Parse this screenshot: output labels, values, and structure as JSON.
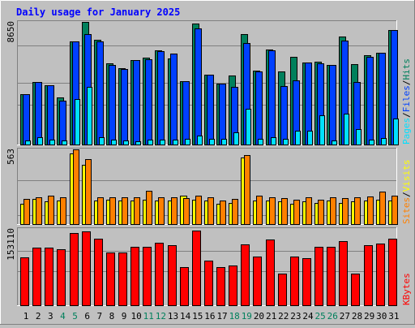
{
  "title": "Daily usage for January 2025",
  "chart_data": [
    {
      "type": "bar",
      "panel": "hits-files-pages",
      "title": "Daily usage for January 2025",
      "max_label": "8650",
      "ylim": [
        0,
        8650
      ],
      "grid": true,
      "axis_labels": [
        {
          "text": "Pages",
          "color": "#00e0ff"
        },
        {
          "text": "/",
          "color": "#000000"
        },
        {
          "text": "Files",
          "color": "#0040ff"
        },
        {
          "text": "/",
          "color": "#000000"
        },
        {
          "text": "Hits",
          "color": "#00805c"
        }
      ],
      "categories": [
        "1",
        "2",
        "3",
        "4",
        "5",
        "6",
        "7",
        "8",
        "9",
        "10",
        "11",
        "12",
        "13",
        "14",
        "15",
        "16",
        "17",
        "18",
        "19",
        "20",
        "21",
        "22",
        "23",
        "24",
        "25",
        "26",
        "27",
        "28",
        "29",
        "30",
        "31"
      ],
      "series": [
        {
          "name": "Hits",
          "color": "#00805c",
          "values": [
            3550,
            4400,
            4200,
            3300,
            7300,
            8650,
            7400,
            5750,
            5400,
            5950,
            6150,
            6650,
            6100,
            4450,
            8550,
            4900,
            4300,
            4850,
            7800,
            5200,
            6700,
            5150,
            6200,
            5800,
            5850,
            5600,
            7600,
            5650,
            6300,
            6500,
            8100
          ]
        },
        {
          "name": "Files",
          "color": "#0040ff",
          "values": [
            3550,
            4400,
            4200,
            3100,
            7300,
            7800,
            7250,
            5600,
            5350,
            5950,
            6000,
            6600,
            6400,
            4450,
            8200,
            4950,
            4300,
            4050,
            7150,
            5150,
            6650,
            4150,
            4550,
            5800,
            5750,
            5600,
            7350,
            4400,
            6200,
            6450,
            8100
          ]
        },
        {
          "name": "Pages",
          "color": "#00e0ff",
          "values": [
            300,
            500,
            350,
            300,
            3200,
            4050,
            500,
            350,
            300,
            250,
            350,
            350,
            350,
            400,
            650,
            400,
            400,
            850,
            2500,
            400,
            500,
            400,
            950,
            950,
            2050,
            300,
            2150,
            1100,
            350,
            450,
            1850
          ]
        }
      ]
    },
    {
      "type": "bar",
      "panel": "visits-sites",
      "max_label": "563",
      "ylim": [
        0,
        563
      ],
      "grid": true,
      "axis_labels": [
        {
          "text": "Sites",
          "color": "#ff8000"
        },
        {
          "text": "/",
          "color": "#000000"
        },
        {
          "text": "Visits",
          "color": "#ffff00"
        }
      ],
      "categories": [
        "1",
        "2",
        "3",
        "4",
        "5",
        "6",
        "7",
        "8",
        "9",
        "10",
        "11",
        "12",
        "13",
        "14",
        "15",
        "16",
        "17",
        "18",
        "19",
        "20",
        "21",
        "22",
        "23",
        "24",
        "25",
        "26",
        "27",
        "28",
        "29",
        "30",
        "31"
      ],
      "series": [
        {
          "name": "Visits",
          "color": "#ffff00",
          "values": [
            155,
            190,
            170,
            175,
            530,
            445,
            175,
            185,
            175,
            175,
            185,
            175,
            175,
            215,
            185,
            175,
            150,
            160,
            500,
            175,
            175,
            170,
            150,
            170,
            160,
            175,
            160,
            170,
            175,
            185,
            175
          ]
        },
        {
          "name": "Sites",
          "color": "#ff8000",
          "values": [
            190,
            205,
            215,
            200,
            563,
            490,
            205,
            205,
            205,
            200,
            250,
            200,
            205,
            195,
            215,
            200,
            175,
            190,
            520,
            215,
            205,
            195,
            185,
            205,
            185,
            200,
            195,
            205,
            210,
            245,
            215
          ]
        }
      ]
    },
    {
      "type": "bar",
      "panel": "kbytes",
      "max_label": "153110",
      "ylim": [
        0,
        153110
      ],
      "grid": true,
      "axis_labels": [
        {
          "text": "KBytes",
          "color": "#ff0000"
        }
      ],
      "categories": [
        "1",
        "2",
        "3",
        "4",
        "5",
        "6",
        "7",
        "8",
        "9",
        "10",
        "11",
        "12",
        "13",
        "14",
        "15",
        "16",
        "17",
        "18",
        "19",
        "20",
        "21",
        "22",
        "23",
        "24",
        "25",
        "26",
        "27",
        "28",
        "29",
        "30",
        "31"
      ],
      "series": [
        {
          "name": "KBytes",
          "color": "#ff0000",
          "values": [
            96000,
            116000,
            116000,
            112000,
            145000,
            149000,
            134000,
            106000,
            106000,
            117000,
            117000,
            125000,
            120000,
            77000,
            150000,
            90000,
            76000,
            80000,
            122000,
            98000,
            132000,
            63000,
            98000,
            95000,
            117000,
            117000,
            128000,
            63000,
            120000,
            124000,
            134000
          ]
        }
      ]
    }
  ],
  "day_labels": [
    {
      "text": "1",
      "color": "#000000"
    },
    {
      "text": "2",
      "color": "#000000"
    },
    {
      "text": "3",
      "color": "#000000"
    },
    {
      "text": "4",
      "color": "#00805c"
    },
    {
      "text": "5",
      "color": "#00805c"
    },
    {
      "text": "6",
      "color": "#000000"
    },
    {
      "text": "7",
      "color": "#000000"
    },
    {
      "text": "8",
      "color": "#000000"
    },
    {
      "text": "9",
      "color": "#000000"
    },
    {
      "text": "10",
      "color": "#000000"
    },
    {
      "text": "11",
      "color": "#00805c"
    },
    {
      "text": "12",
      "color": "#00805c"
    },
    {
      "text": "13",
      "color": "#000000"
    },
    {
      "text": "14",
      "color": "#000000"
    },
    {
      "text": "15",
      "color": "#000000"
    },
    {
      "text": "16",
      "color": "#000000"
    },
    {
      "text": "17",
      "color": "#000000"
    },
    {
      "text": "18",
      "color": "#00805c"
    },
    {
      "text": "19",
      "color": "#00805c"
    },
    {
      "text": "20",
      "color": "#000000"
    },
    {
      "text": "21",
      "color": "#000000"
    },
    {
      "text": "22",
      "color": "#000000"
    },
    {
      "text": "23",
      "color": "#000000"
    },
    {
      "text": "24",
      "color": "#000000"
    },
    {
      "text": "25",
      "color": "#00805c"
    },
    {
      "text": "26",
      "color": "#00805c"
    },
    {
      "text": "27",
      "color": "#000000"
    },
    {
      "text": "28",
      "color": "#000000"
    },
    {
      "text": "29",
      "color": "#000000"
    },
    {
      "text": "30",
      "color": "#000000"
    },
    {
      "text": "31",
      "color": "#000000"
    }
  ]
}
